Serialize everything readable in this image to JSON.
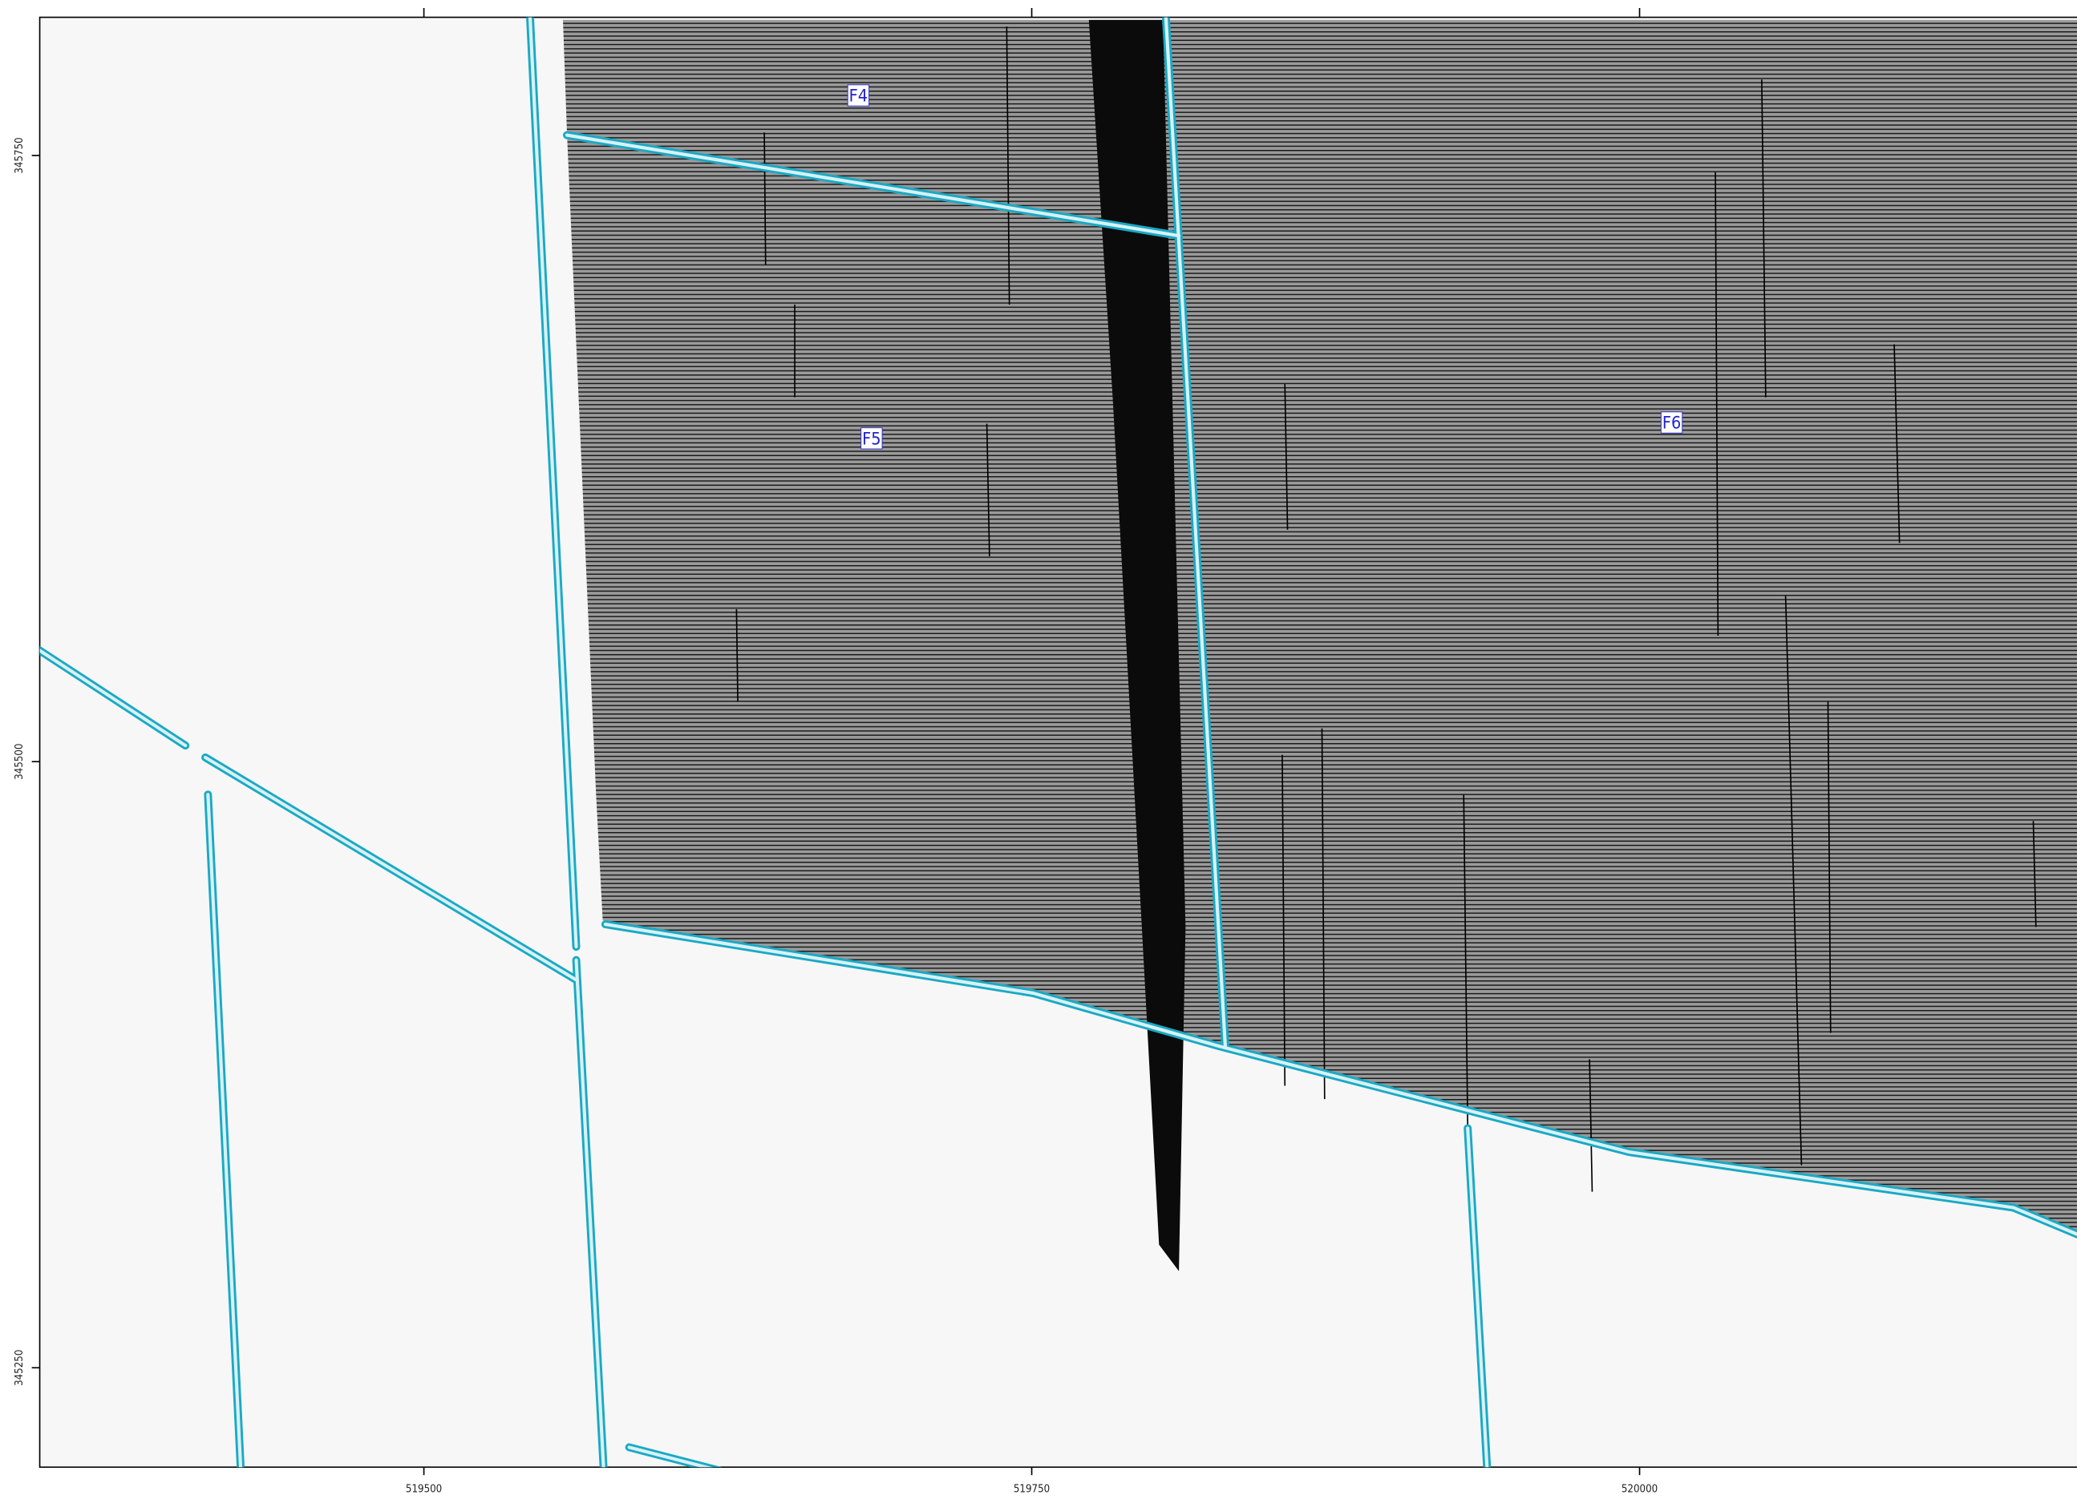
{
  "map": {
    "xlim": [
      519342,
      520181
    ],
    "ylim": [
      345209,
      345807
    ],
    "x_ticks": [
      519500,
      519750,
      520000
    ],
    "y_ticks": [
      345750,
      345500,
      345250
    ],
    "labels": [
      "F4",
      "F5",
      "F6"
    ]
  }
}
